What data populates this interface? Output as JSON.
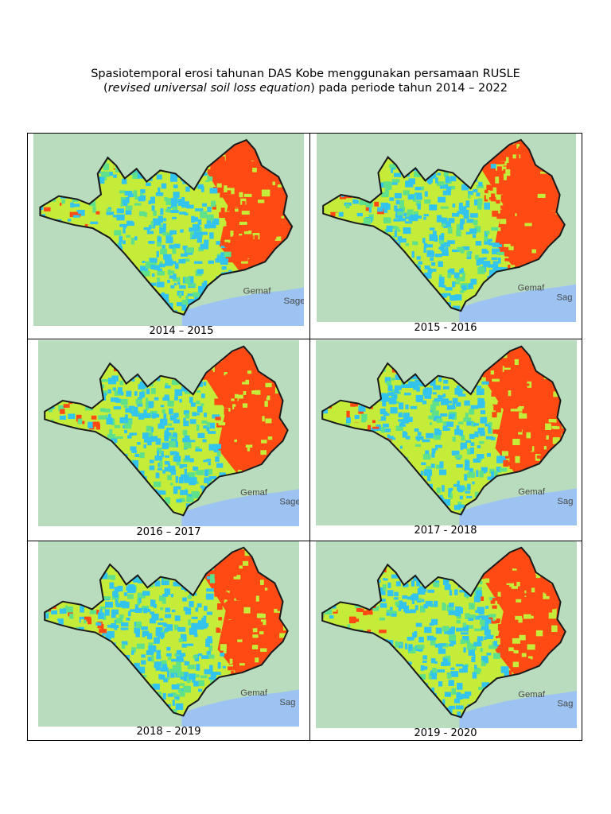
{
  "title": {
    "line1": "Spasiotemporal erosi tahunan DAS Kobe menggunakan persamaan RUSLE",
    "line2_open": "(",
    "line2_italic": "revised universal soil loss equation",
    "line2_rest": ") pada periode tahun 2014 – 2022"
  },
  "panels": [
    {
      "caption": "2014 – 2015",
      "place_labels": [
        "Gemaf",
        "Sagea"
      ]
    },
    {
      "caption": "2015 - 2016",
      "place_labels": [
        "Gemaf",
        "Sag"
      ]
    },
    {
      "caption": "2016 – 2017",
      "place_labels": [
        "Gemaf",
        "Sage"
      ]
    },
    {
      "caption": "2017 - 2018",
      "place_labels": [
        "Gemaf",
        "Sag"
      ]
    },
    {
      "caption": "2018 – 2019",
      "place_labels": [
        "Gemaf",
        "Sag"
      ]
    },
    {
      "caption": "2019 - 2020",
      "place_labels": [
        "Gemaf",
        "Sag"
      ]
    }
  ],
  "colors": {
    "background_land": "#b9dcbf",
    "sea": "#9cc3f2",
    "erosion_low": "#33c4ee",
    "erosion_mid_low": "#5fe08a",
    "erosion_mid": "#c6ec3a",
    "erosion_high": "#ff4a14",
    "boundary": "#1a1a1a"
  }
}
